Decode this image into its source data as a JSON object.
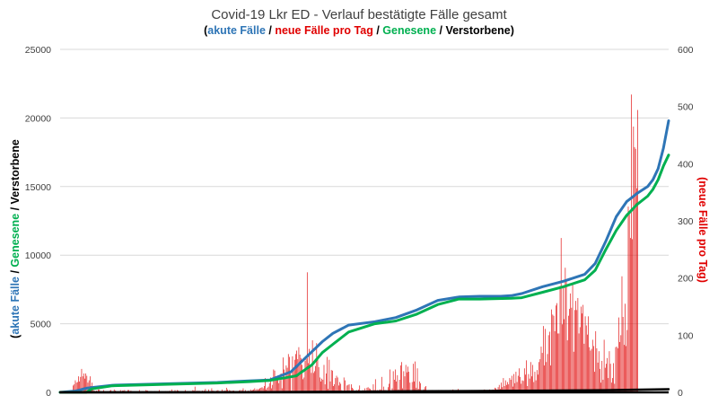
{
  "chart_data": {
    "type": "line",
    "title": "Covid-19 Lkr ED - Verlauf bestätigte Fälle gesamt",
    "subtitle": [
      {
        "text": "(",
        "color": "#000000"
      },
      {
        "text": "akute Fälle",
        "color": "#2e75b6"
      },
      {
        "text": " / ",
        "color": "#000000"
      },
      {
        "text": "neue Fälle pro Tag",
        "color": "#e00000"
      },
      {
        "text": " / ",
        "color": "#000000"
      },
      {
        "text": "Genesene",
        "color": "#00b050"
      },
      {
        "text": " / ",
        "color": "#000000"
      },
      {
        "text": "Verstorbene",
        "color": "#000000"
      },
      {
        "text": ")",
        "color": "#000000"
      }
    ],
    "ylabel_left": [
      {
        "text": "(",
        "color": "#000000"
      },
      {
        "text": "akute Fälle",
        "color": "#2e75b6"
      },
      {
        "text": " / ",
        "color": "#000000"
      },
      {
        "text": "Genesene",
        "color": "#00b050"
      },
      {
        "text": " / Verstorbene",
        "color": "#000000"
      }
    ],
    "ylabel_right": [
      {
        "text": "(neue Fälle pro Tag)",
        "color": "#e00000"
      }
    ],
    "y_left_ticks": [
      "0",
      "5000",
      "10000",
      "15000",
      "20000",
      "25000"
    ],
    "y_right_ticks": [
      "0",
      "100",
      "200",
      "300",
      "400",
      "500",
      "600"
    ],
    "ylim_left": [
      0,
      25000
    ],
    "ylim_right": [
      0,
      600
    ],
    "grid": true,
    "x_range_days": 580,
    "series": [
      {
        "name": "akute Fälle",
        "axis": "left",
        "color": "#2e75b6",
        "x": [
          0,
          15,
          25,
          50,
          100,
          150,
          180,
          200,
          220,
          235,
          250,
          260,
          275,
          300,
          320,
          340,
          360,
          380,
          400,
          420,
          430,
          440,
          460,
          480,
          500,
          510,
          520,
          530,
          540,
          550,
          560,
          565,
          570,
          575,
          580
        ],
        "values": [
          0,
          100,
          300,
          520,
          620,
          720,
          830,
          900,
          1500,
          2600,
          3700,
          4300,
          4900,
          5150,
          5450,
          6000,
          6700,
          6950,
          7000,
          7000,
          7050,
          7200,
          7700,
          8100,
          8600,
          9400,
          11000,
          12800,
          13900,
          14500,
          15000,
          15500,
          16300,
          17800,
          19800
        ]
      },
      {
        "name": "Genesene",
        "axis": "left",
        "color": "#00b050",
        "x": [
          0,
          25,
          30,
          50,
          100,
          150,
          180,
          200,
          225,
          240,
          250,
          260,
          275,
          300,
          320,
          340,
          360,
          380,
          400,
          430,
          440,
          460,
          480,
          500,
          510,
          520,
          530,
          540,
          550,
          560,
          565,
          570,
          575,
          580
        ],
        "values": [
          0,
          0,
          250,
          480,
          580,
          680,
          780,
          870,
          1200,
          2000,
          2900,
          3500,
          4400,
          5000,
          5200,
          5700,
          6400,
          6800,
          6800,
          6850,
          6900,
          7300,
          7700,
          8200,
          8900,
          10400,
          11800,
          12900,
          13700,
          14300,
          14800,
          15500,
          16500,
          17300
        ]
      },
      {
        "name": "Verstorbene",
        "axis": "left",
        "color": "#000000",
        "x": [
          0,
          200,
          260,
          340,
          440,
          520,
          580
        ],
        "values": [
          0,
          10,
          40,
          80,
          110,
          160,
          230
        ]
      },
      {
        "name": "neue Fälle pro Tag",
        "axis": "right",
        "type": "bar",
        "color": "#e00000",
        "x_start": 0,
        "values": [
          0,
          0,
          1,
          0,
          0,
          0,
          0,
          0,
          0,
          1,
          0,
          0,
          12,
          14,
          21,
          17,
          18,
          28,
          19,
          27,
          41,
          28,
          33,
          24,
          33,
          29,
          17,
          21,
          28,
          11,
          17,
          8,
          3,
          0,
          3,
          1,
          5,
          5,
          1,
          0,
          2,
          4,
          1,
          1,
          1,
          2,
          1,
          3,
          4,
          1,
          0,
          5,
          3,
          2,
          0,
          0,
          0,
          4,
          1,
          3,
          3,
          4,
          1,
          0,
          4,
          4,
          2,
          3,
          0,
          0,
          1,
          0,
          1,
          0,
          0,
          4,
          0,
          0,
          2,
          2,
          0,
          4,
          3,
          3,
          1,
          0,
          2,
          0,
          0,
          0,
          2,
          0,
          0,
          0,
          4,
          0,
          0,
          0,
          0,
          0,
          2,
          0,
          2,
          0,
          3,
          0,
          5,
          0,
          0,
          4,
          2,
          4,
          3,
          0,
          0,
          0,
          0,
          0,
          2,
          4,
          2,
          2,
          1,
          0,
          2,
          0,
          4,
          3,
          10,
          0,
          3,
          2,
          3,
          2,
          2,
          3,
          0,
          3,
          6,
          0,
          0,
          5,
          1,
          0,
          7,
          3,
          2,
          2,
          1,
          3,
          4,
          1,
          0,
          2,
          5,
          0,
          3,
          3,
          8,
          5,
          2,
          4,
          3,
          0,
          3,
          3,
          2,
          1,
          0,
          2,
          3,
          4,
          2,
          4,
          7,
          0,
          4,
          1,
          1,
          3,
          0,
          5,
          3,
          4,
          5,
          7,
          4,
          6,
          4,
          6,
          7,
          8,
          9,
          7,
          11,
          25,
          5,
          8,
          10,
          16,
          26,
          7,
          13,
          40,
          38,
          22,
          23,
          22,
          16,
          21,
          33,
          7,
          61,
          40,
          27,
          47,
          43,
          67,
          62,
          33,
          3,
          63,
          39,
          57,
          67,
          73,
          58,
          79,
          66,
          60,
          48,
          23,
          26,
          55,
          58,
          210,
          51,
          76,
          45,
          34,
          91,
          34,
          37,
          46,
          86,
          59,
          44,
          26,
          19,
          24,
          22,
          48,
          14,
          33,
          62,
          6,
          57,
          19,
          39,
          38,
          11,
          14,
          25,
          29,
          26,
          12,
          18,
          15,
          4,
          1,
          26,
          21,
          1,
          12,
          13,
          14,
          1,
          14,
          8,
          6,
          2,
          2,
          4,
          1,
          5,
          12,
          1,
          2,
          4,
          2,
          7,
          3,
          8,
          9,
          7,
          6,
          4,
          3,
          14,
          4,
          23,
          3,
          4,
          0,
          5,
          5,
          27,
          2,
          10,
          4,
          4,
          2,
          9,
          15,
          40,
          3,
          7,
          37,
          22,
          40,
          19,
          30,
          5,
          22,
          47,
          53,
          7,
          37,
          28,
          48,
          35,
          45,
          36,
          17,
          3,
          18,
          50,
          19,
          54,
          8,
          42,
          6,
          19,
          16,
          4,
          2,
          5,
          9,
          11,
          2,
          3,
          4,
          3,
          1,
          4,
          2,
          1,
          1,
          1,
          3,
          4,
          1,
          2,
          4,
          0,
          3,
          3,
          2,
          2,
          2,
          2,
          4,
          3,
          2,
          5,
          1,
          3,
          4,
          2,
          6,
          3,
          3,
          2,
          1,
          3,
          3,
          2,
          3,
          1,
          1,
          4,
          3,
          4,
          2,
          3,
          3,
          2,
          1,
          3,
          4,
          2,
          2,
          3,
          4,
          5,
          2,
          2,
          3,
          4,
          5,
          3,
          4,
          5,
          3,
          8,
          7,
          5,
          9,
          13,
          6,
          17,
          9,
          25,
          11,
          21,
          13,
          18,
          14,
          25,
          22,
          29,
          10,
          32,
          16,
          36,
          18,
          29,
          42,
          27,
          15,
          21,
          20,
          42,
          31,
          56,
          11,
          32,
          24,
          53,
          28,
          48,
          18,
          36,
          21,
          39,
          31,
          53,
          58,
          80,
          69,
          116,
          47,
          111,
          53,
          67,
          100,
          106,
          47,
          145,
          136,
          134,
          107,
          152,
          156,
          103,
          103,
          186,
          270,
          119,
          183,
          128,
          218,
          198,
          91,
          134,
          146,
          173,
          148,
          190,
          71,
          144,
          160,
          144,
          165,
          103,
          114,
          150,
          138,
          153,
          85,
          133,
          117,
          101,
          133,
          79,
          73,
          76,
          92,
          81,
          36,
          107,
          77,
          52,
          72,
          41,
          17,
          55,
          22,
          92,
          43,
          50,
          60,
          25,
          72,
          50,
          17,
          25,
          51,
          15,
          79,
          80,
          77,
          131,
          88,
          100,
          203,
          132,
          83,
          155,
          81,
          109,
          325,
          317,
          270,
          521,
          268,
          465,
          429,
          426,
          357,
          494
        ]
      }
    ]
  }
}
